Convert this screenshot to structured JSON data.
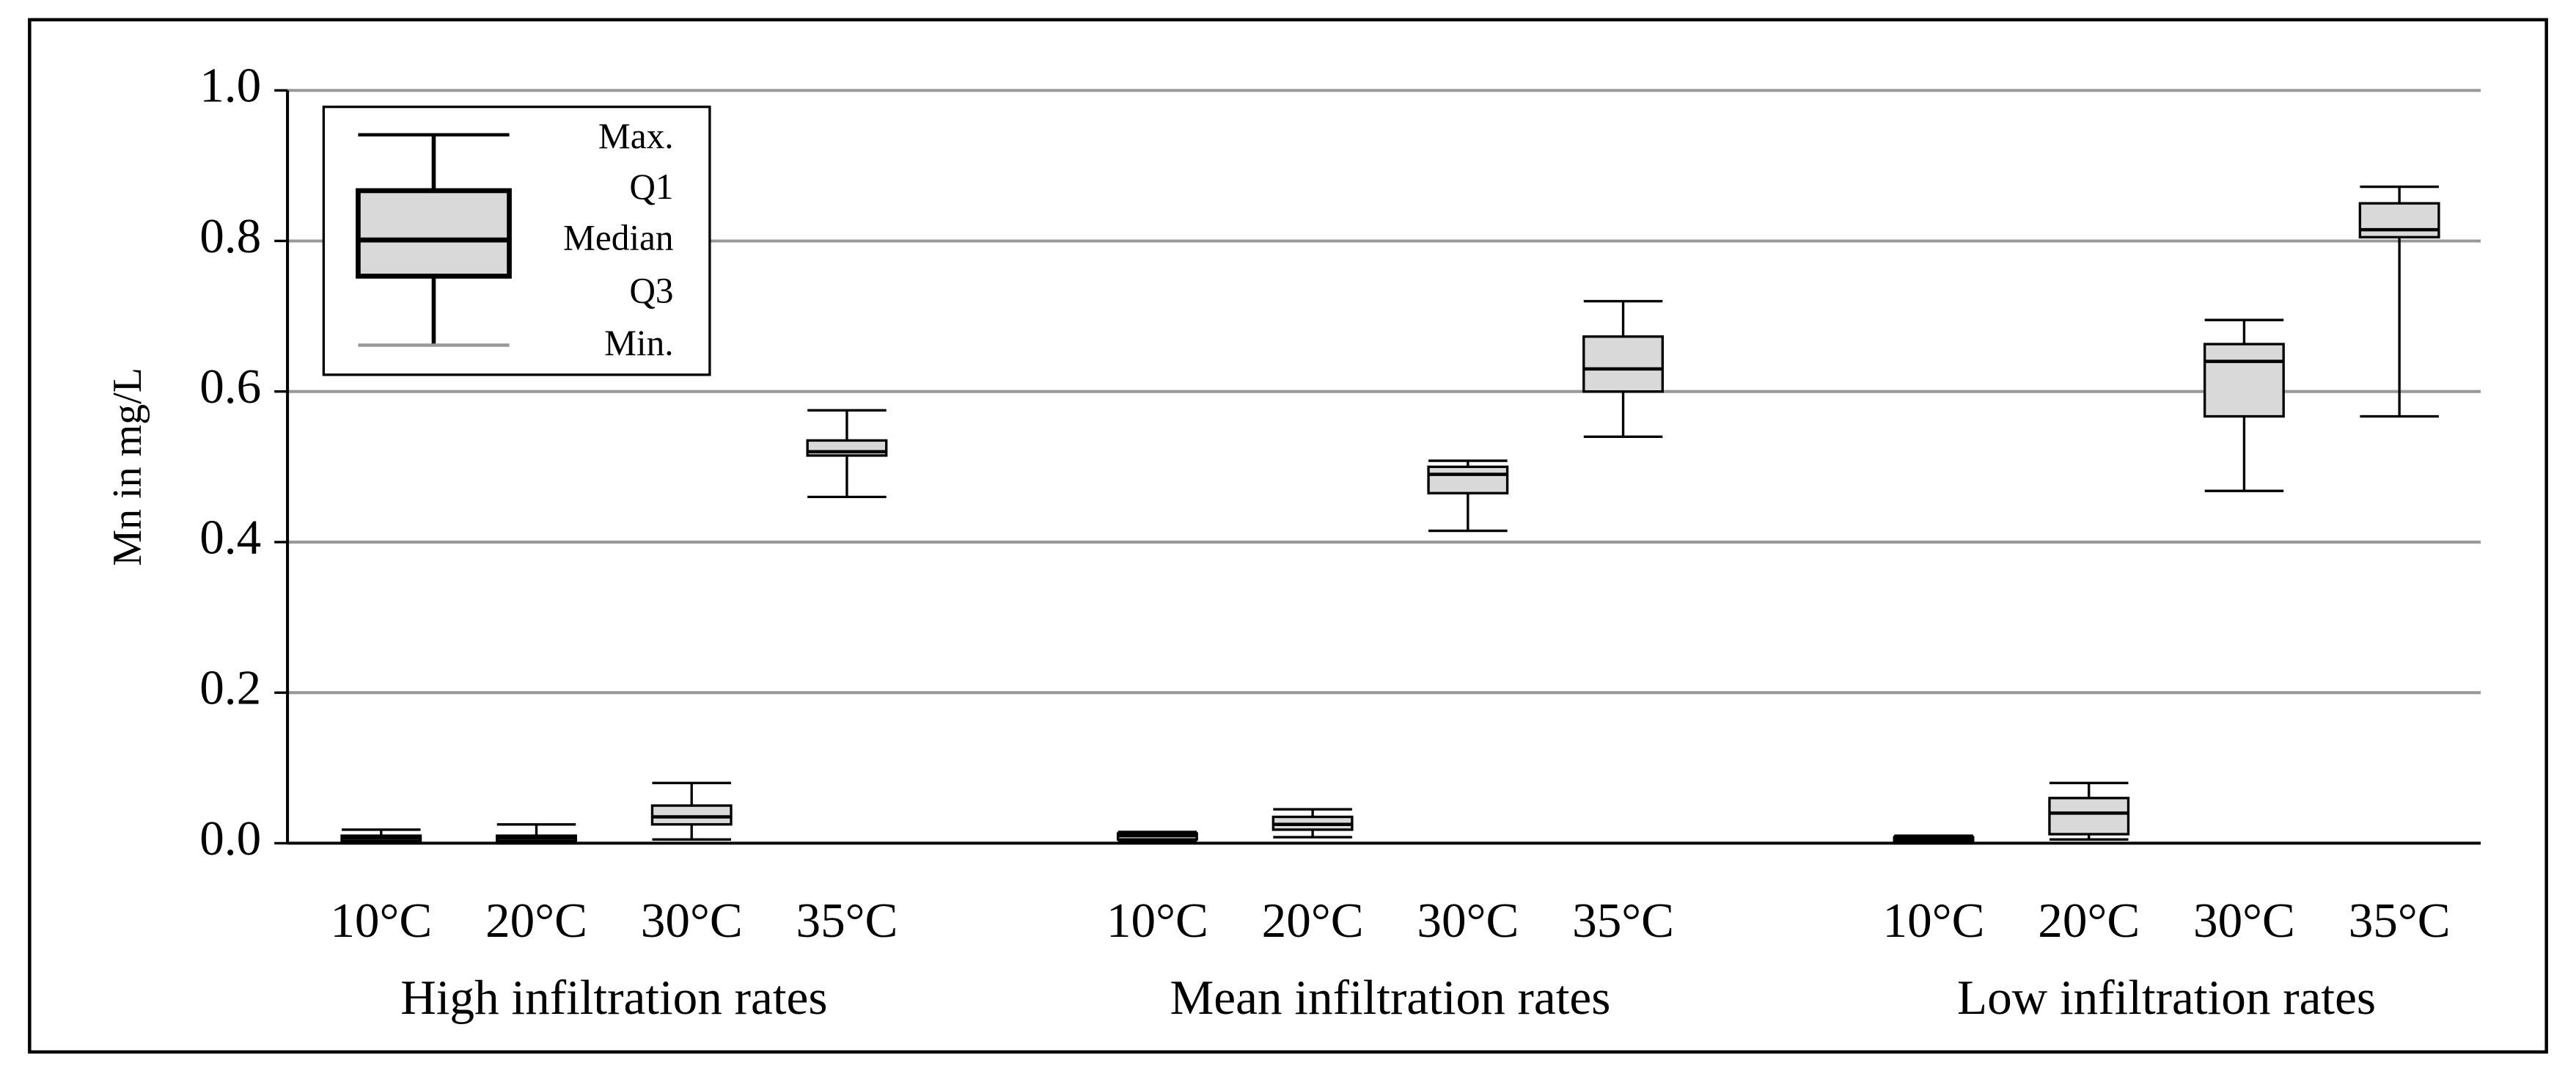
{
  "chart_data": {
    "type": "box",
    "ylabel": "Mn in mg/L",
    "categories": [
      "10°C",
      "20°C",
      "30°C",
      "35°C",
      "10°C",
      "20°C",
      "30°C",
      "35°C",
      "10°C",
      "20°C",
      "30°C",
      "35°C"
    ],
    "groups": [
      "High infiltration rates",
      "Mean infiltration rates",
      "Low infiltration rates"
    ],
    "min": [
      0,
      0,
      0.005,
      0.46,
      0.002,
      0.008,
      0.415,
      0.54,
      0,
      0.005,
      0.468,
      0.567
    ],
    "q1": [
      0.003,
      0.003,
      0.025,
      0.515,
      0.005,
      0.018,
      0.465,
      0.6,
      0.003,
      0.012,
      0.567,
      0.805
    ],
    "median": [
      0.007,
      0.007,
      0.035,
      0.52,
      0.01,
      0.025,
      0.49,
      0.63,
      0.005,
      0.04,
      0.64,
      0.815
    ],
    "q3": [
      0.01,
      0.01,
      0.05,
      0.535,
      0.013,
      0.035,
      0.5,
      0.673,
      0.008,
      0.06,
      0.663,
      0.85
    ],
    "max": [
      0.018,
      0.025,
      0.08,
      0.575,
      0.015,
      0.045,
      0.508,
      0.72,
      0.01,
      0.08,
      0.695,
      0.872
    ],
    "color": "#d9d9d9",
    "ylim": [
      0,
      1
    ],
    "yticks": [
      {
        "value": 0,
        "label": "0.0"
      },
      0.2,
      0.4,
      0.6,
      0.8,
      {
        "value": 1,
        "label": "1.0"
      }
    ],
    "grid": true,
    "legend": {
      "max": "Max.",
      "q1": "Q1",
      "median": "Median",
      "q3": "Q3",
      "min": "Min."
    },
    "legend_position": "upper left"
  }
}
